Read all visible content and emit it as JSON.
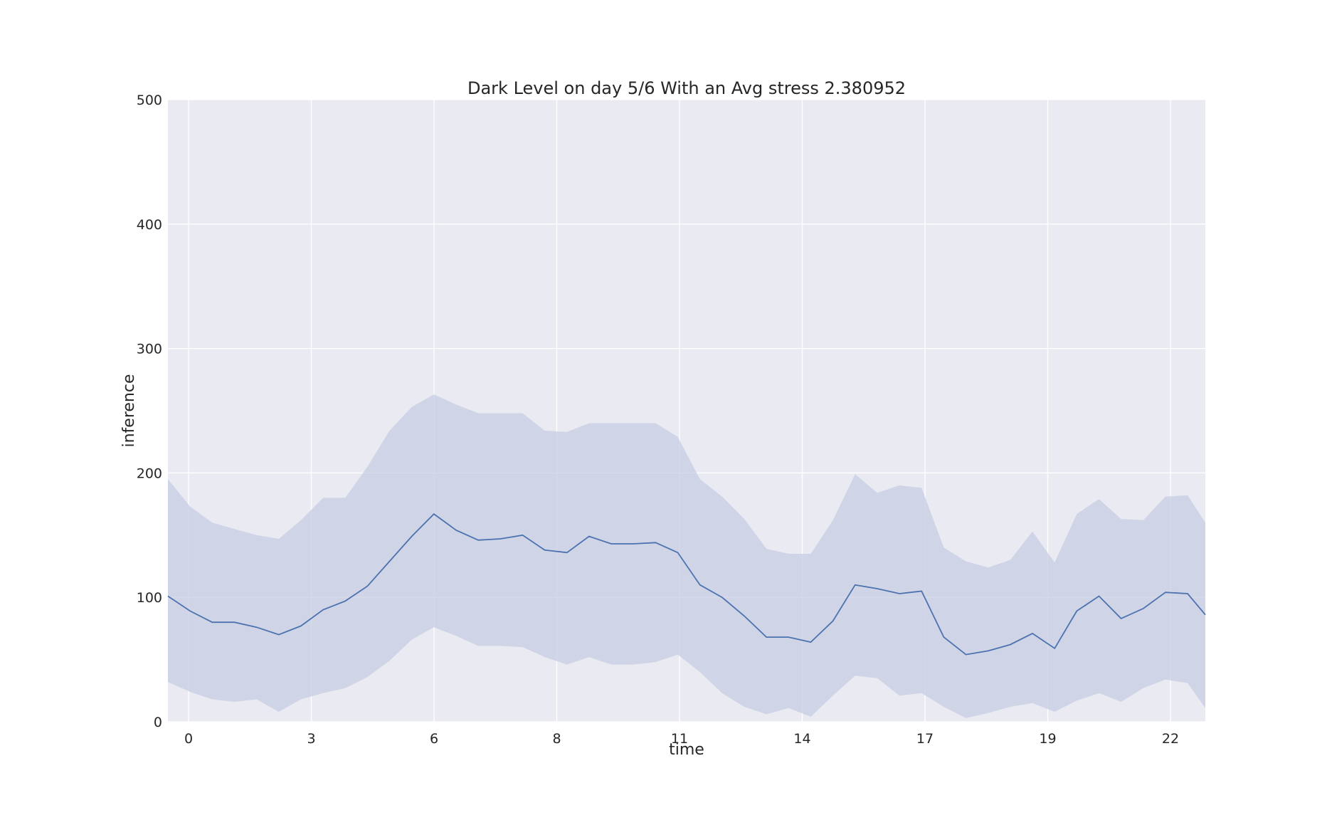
{
  "chart_data": {
    "type": "line",
    "title": "Dark Level on day 5/6 With an Avg stress 2.380952",
    "xlabel": "time",
    "ylabel": "inference",
    "xlim": [
      -0.4,
      23.0
    ],
    "ylim": [
      0,
      500
    ],
    "x_tick_labels": [
      "0",
      "3",
      "6",
      "8",
      "11",
      "14",
      "17",
      "19",
      "22"
    ],
    "y_ticks": [
      0,
      100,
      200,
      300,
      400,
      500
    ],
    "grid": true,
    "legend": "none",
    "colors": {
      "background": "#eaeaf2",
      "grid": "#ffffff",
      "line": "#4c72b0",
      "band": "#c6cde2"
    },
    "series": [
      {
        "x": [
          -0.4,
          0.1,
          0.6,
          1.1,
          1.6,
          2.1,
          2.6,
          3.1,
          3.6,
          4.1,
          4.6,
          5.1,
          5.6,
          6.1,
          6.6,
          7.1,
          7.6,
          8.1,
          8.6,
          9.1,
          9.6,
          10.1,
          10.6,
          11.1,
          11.6,
          12.1,
          12.6,
          13.1,
          13.6,
          14.1,
          14.6,
          15.1,
          15.6,
          16.1,
          16.6,
          17.1,
          17.6,
          18.1,
          18.6,
          19.1,
          19.6,
          20.1,
          20.6,
          21.1,
          21.6,
          22.1,
          22.6,
          23.0
        ],
        "y": [
          101,
          89,
          80,
          80,
          76,
          70,
          77,
          90,
          97,
          109,
          129,
          149,
          167,
          154,
          146,
          147,
          150,
          138,
          136,
          149,
          143,
          143,
          144,
          136,
          110,
          100,
          85,
          68,
          68,
          64,
          81,
          110,
          107,
          103,
          105,
          68,
          54,
          57,
          62,
          71,
          59,
          89,
          101,
          83,
          91,
          104,
          103,
          86
        ],
        "upper": [
          195,
          173,
          160,
          155,
          150,
          147,
          162,
          180,
          180,
          205,
          234,
          253,
          263,
          255,
          248,
          248,
          248,
          234,
          233,
          240,
          240,
          240,
          240,
          229,
          195,
          181,
          163,
          139,
          135,
          135,
          162,
          199,
          184,
          190,
          188,
          140,
          129,
          124,
          130,
          153,
          128,
          167,
          179,
          163,
          162,
          181,
          182,
          160
        ],
        "lower": [
          32,
          24,
          18,
          16,
          18,
          8,
          18,
          23,
          27,
          36,
          49,
          66,
          76,
          69,
          61,
          61,
          60,
          52,
          46,
          52,
          46,
          46,
          48,
          54,
          40,
          23,
          12,
          6,
          11,
          4,
          21,
          37,
          35,
          21,
          23,
          12,
          3,
          7,
          12,
          15,
          8,
          17,
          23,
          16,
          27,
          34,
          31,
          11
        ]
      }
    ]
  }
}
